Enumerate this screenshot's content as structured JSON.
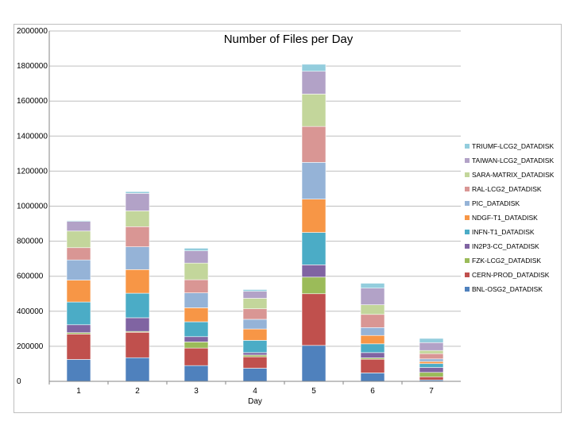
{
  "chart_data": {
    "type": "bar",
    "stacked": true,
    "title": "Number of Files per Day",
    "xlabel": "Day",
    "ylabel": "",
    "ylim": [
      0,
      2000000
    ],
    "yticks": [
      0,
      200000,
      400000,
      600000,
      800000,
      1000000,
      1200000,
      1400000,
      1600000,
      1800000,
      2000000
    ],
    "ytick_labels": [
      "0",
      "200000",
      "400000",
      "600000",
      "800000",
      "1000000",
      "1200000",
      "1400000",
      "1600000",
      "1800000",
      "2000000"
    ],
    "grid": true,
    "legend_position": "right",
    "categories": [
      "1",
      "2",
      "3",
      "4",
      "5",
      "6",
      "7"
    ],
    "series": [
      {
        "name": "BNL-OSG2_DATADISK",
        "color": "#4F81BD",
        "values": [
          125000,
          135000,
          90000,
          75000,
          205000,
          48000,
          8000
        ]
      },
      {
        "name": "CERN-PROD_DATADISK",
        "color": "#C0504D",
        "values": [
          145000,
          145000,
          100000,
          65000,
          295000,
          78000,
          18000
        ]
      },
      {
        "name": "FZK-LCG2_DATADISK",
        "color": "#9BBB59",
        "values": [
          8000,
          5000,
          35000,
          10000,
          95000,
          8000,
          25000
        ]
      },
      {
        "name": "IN2P3-CC_DATADISK",
        "color": "#8064A2",
        "values": [
          45000,
          78000,
          30000,
          14000,
          70000,
          30000,
          28000
        ]
      },
      {
        "name": "INFN-T1_DATADISK",
        "color": "#4BACC6",
        "values": [
          130000,
          140000,
          85000,
          70000,
          185000,
          50000,
          22000
        ]
      },
      {
        "name": "NDGF-T1_DATADISK",
        "color": "#F79646",
        "values": [
          125000,
          135000,
          80000,
          65000,
          190000,
          48000,
          12000
        ]
      },
      {
        "name": "PIC_DATADISK",
        "color": "#95B3D7",
        "values": [
          115000,
          130000,
          85000,
          55000,
          210000,
          45000,
          15000
        ]
      },
      {
        "name": "RAL-LCG2_DATADISK",
        "color": "#D99694",
        "values": [
          70000,
          115000,
          75000,
          60000,
          205000,
          75000,
          30000
        ]
      },
      {
        "name": "SARA-MATRIX_DATADISK",
        "color": "#C3D69B",
        "values": [
          95000,
          90000,
          95000,
          60000,
          185000,
          55000,
          18000
        ]
      },
      {
        "name": "TAIWAN-LCG2_DATADISK",
        "color": "#B2A2C7",
        "values": [
          55000,
          100000,
          70000,
          40000,
          130000,
          95000,
          45000
        ]
      },
      {
        "name": "TRIUMF-LCG2_DATADISK",
        "color": "#93CDDD",
        "values": [
          5000,
          10000,
          15000,
          10000,
          40000,
          28000,
          24000
        ]
      }
    ]
  }
}
